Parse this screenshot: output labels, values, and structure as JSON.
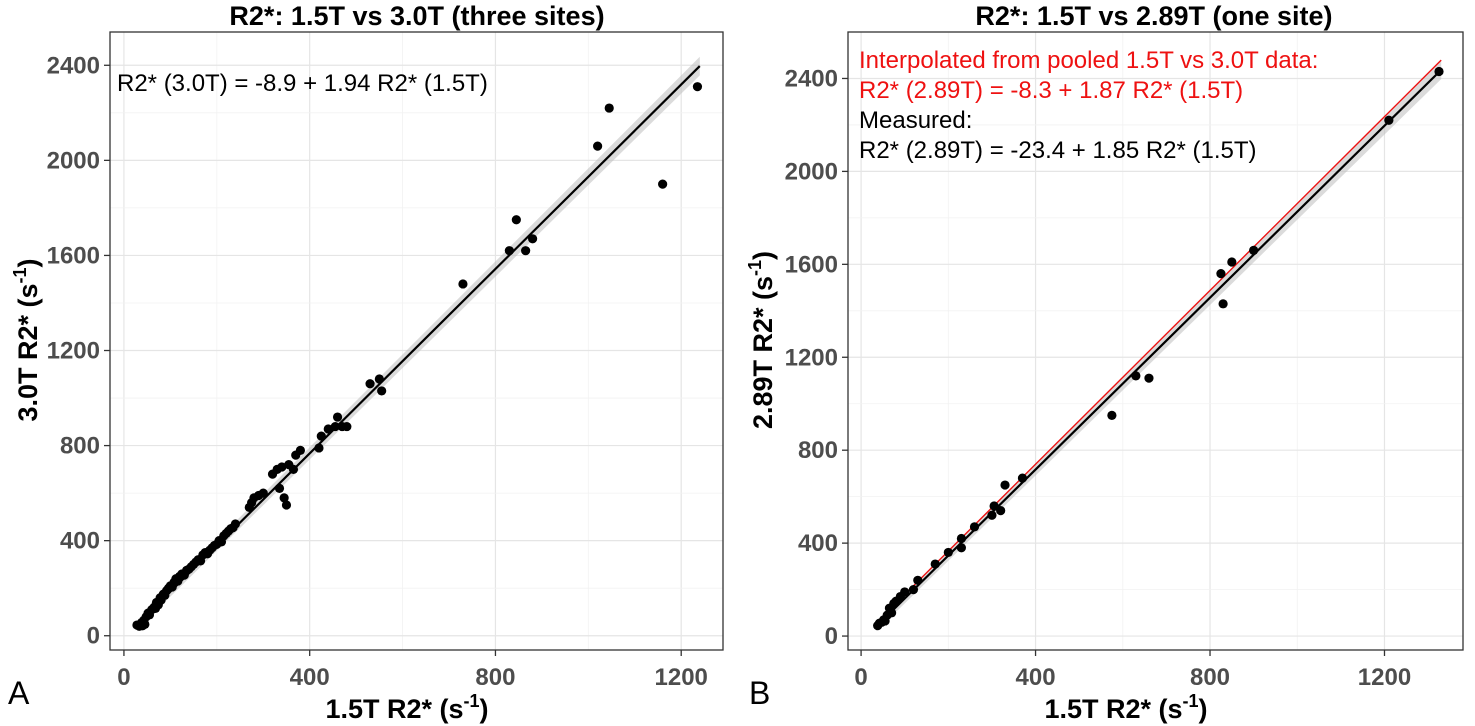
{
  "chart_data": [
    {
      "type": "scatter",
      "panel_label": "A",
      "title": "R2*: 1.5T vs 3.0T (three sites)",
      "xlabel": "1.5T R2* (s-1)",
      "xlabel_parts": {
        "main": "1.5T R2* (s",
        "sup": "-1",
        "close": ")"
      },
      "ylabel": "3.0T R2* (s-1)",
      "ylabel_parts": {
        "main": "3.0T R2* (s",
        "sup": "-1",
        "close": ")"
      },
      "xlim": [
        -30,
        1290
      ],
      "ylim": [
        -60,
        2540
      ],
      "xticks": [
        0,
        400,
        800,
        1200
      ],
      "xtick_labels": [
        "0",
        "400",
        "800",
        "1200"
      ],
      "yticks": [
        0,
        400,
        800,
        1200,
        1600,
        2000,
        2400
      ],
      "ytick_labels": [
        "0",
        "400",
        "800",
        "1200",
        "1600",
        "2000",
        "2400"
      ],
      "grid": true,
      "annotations": [
        {
          "text": "R2* (3.0T) = -8.9 + 1.94 R2* (1.5T)",
          "color": "#000000"
        }
      ],
      "fit_lines": [
        {
          "name": "fit",
          "intercept": -8.9,
          "slope": 1.94,
          "x_range": [
            30,
            1240
          ],
          "color": "#000000",
          "ci_band": true
        }
      ],
      "series": [
        {
          "name": "three sites",
          "points": [
            [
              28,
              45
            ],
            [
              33,
              40
            ],
            [
              38,
              55
            ],
            [
              40,
              42
            ],
            [
              43,
              65
            ],
            [
              45,
              48
            ],
            [
              48,
              80
            ],
            [
              52,
              95
            ],
            [
              55,
              88
            ],
            [
              60,
              110
            ],
            [
              65,
              120
            ],
            [
              68,
              115
            ],
            [
              70,
              140
            ],
            [
              74,
              130
            ],
            [
              78,
              160
            ],
            [
              80,
              150
            ],
            [
              85,
              175
            ],
            [
              88,
              170
            ],
            [
              92,
              190
            ],
            [
              96,
              200
            ],
            [
              100,
              210
            ],
            [
              104,
              205
            ],
            [
              108,
              225
            ],
            [
              112,
              240
            ],
            [
              116,
              230
            ],
            [
              120,
              250
            ],
            [
              125,
              260
            ],
            [
              130,
              255
            ],
            [
              135,
              275
            ],
            [
              140,
              280
            ],
            [
              145,
              290
            ],
            [
              150,
              300
            ],
            [
              155,
              310
            ],
            [
              160,
              320
            ],
            [
              165,
              315
            ],
            [
              170,
              340
            ],
            [
              175,
              350
            ],
            [
              180,
              345
            ],
            [
              185,
              360
            ],
            [
              190,
              370
            ],
            [
              195,
              380
            ],
            [
              200,
              385
            ],
            [
              205,
              400
            ],
            [
              210,
              395
            ],
            [
              215,
              420
            ],
            [
              220,
              430
            ],
            [
              225,
              440
            ],
            [
              230,
              450
            ],
            [
              235,
              455
            ],
            [
              240,
              470
            ],
            [
              270,
              540
            ],
            [
              275,
              560
            ],
            [
              280,
              580
            ],
            [
              290,
              590
            ],
            [
              300,
              600
            ],
            [
              320,
              680
            ],
            [
              330,
              700
            ],
            [
              335,
              620
            ],
            [
              340,
              710
            ],
            [
              345,
              580
            ],
            [
              350,
              550
            ],
            [
              355,
              720
            ],
            [
              365,
              700
            ],
            [
              370,
              760
            ],
            [
              380,
              780
            ],
            [
              420,
              790
            ],
            [
              425,
              840
            ],
            [
              440,
              870
            ],
            [
              455,
              880
            ],
            [
              460,
              920
            ],
            [
              470,
              880
            ],
            [
              480,
              880
            ],
            [
              530,
              1060
            ],
            [
              550,
              1080
            ],
            [
              555,
              1030
            ],
            [
              730,
              1480
            ],
            [
              830,
              1620
            ],
            [
              845,
              1750
            ],
            [
              865,
              1620
            ],
            [
              880,
              1670
            ],
            [
              1020,
              2060
            ],
            [
              1045,
              2220
            ],
            [
              1160,
              1900
            ],
            [
              1235,
              2310
            ]
          ]
        }
      ]
    },
    {
      "type": "scatter",
      "panel_label": "B",
      "title": "R2*: 1.5T vs 2.89T (one site)",
      "xlabel": "1.5T R2* (s-1)",
      "xlabel_parts": {
        "main": "1.5T R2* (s",
        "sup": "-1",
        "close": ")"
      },
      "ylabel": "2.89T R2* (s-1)",
      "ylabel_parts": {
        "main": "2.89T R2* (s",
        "sup": "-1",
        "close": ")"
      },
      "xlim": [
        -30,
        1380
      ],
      "ylim": [
        -60,
        2600
      ],
      "xticks": [
        0,
        400,
        800,
        1200
      ],
      "xtick_labels": [
        "0",
        "400",
        "800",
        "1200"
      ],
      "yticks": [
        0,
        400,
        800,
        1200,
        1600,
        2000,
        2400
      ],
      "ytick_labels": [
        "0",
        "400",
        "800",
        "1200",
        "1600",
        "2000",
        "2400"
      ],
      "grid": true,
      "annotations": [
        {
          "text": "Interpolated from pooled 1.5T vs 3.0T data:",
          "color": "#ee1111"
        },
        {
          "text": "R2* (2.89T) = -8.3 + 1.87 R2* (1.5T)",
          "color": "#ee1111"
        },
        {
          "text": "Measured:",
          "color": "#000000"
        },
        {
          "text": "R2* (2.89T) = -23.4 + 1.85 R2* (1.5T)",
          "color": "#000000"
        }
      ],
      "fit_lines": [
        {
          "name": "measured fit",
          "intercept": -23.4,
          "slope": 1.85,
          "x_range": [
            35,
            1330
          ],
          "color": "#000000",
          "ci_band": true
        },
        {
          "name": "interpolated",
          "intercept": -8.3,
          "slope": 1.87,
          "x_range": [
            35,
            1330
          ],
          "color": "#ee1111",
          "ci_band": false
        }
      ],
      "series": [
        {
          "name": "one site",
          "points": [
            [
              38,
              45
            ],
            [
              42,
              55
            ],
            [
              48,
              60
            ],
            [
              52,
              70
            ],
            [
              55,
              65
            ],
            [
              60,
              90
            ],
            [
              65,
              120
            ],
            [
              70,
              100
            ],
            [
              75,
              140
            ],
            [
              80,
              150
            ],
            [
              90,
              170
            ],
            [
              100,
              190
            ],
            [
              120,
              200
            ],
            [
              130,
              240
            ],
            [
              170,
              310
            ],
            [
              200,
              360
            ],
            [
              230,
              380
            ],
            [
              230,
              420
            ],
            [
              260,
              470
            ],
            [
              300,
              520
            ],
            [
              305,
              560
            ],
            [
              320,
              540
            ],
            [
              330,
              650
            ],
            [
              370,
              680
            ],
            [
              575,
              950
            ],
            [
              630,
              1120
            ],
            [
              660,
              1110
            ],
            [
              825,
              1560
            ],
            [
              830,
              1430
            ],
            [
              850,
              1610
            ],
            [
              900,
              1660
            ],
            [
              1210,
              2220
            ],
            [
              1325,
              2430
            ]
          ]
        }
      ]
    }
  ]
}
